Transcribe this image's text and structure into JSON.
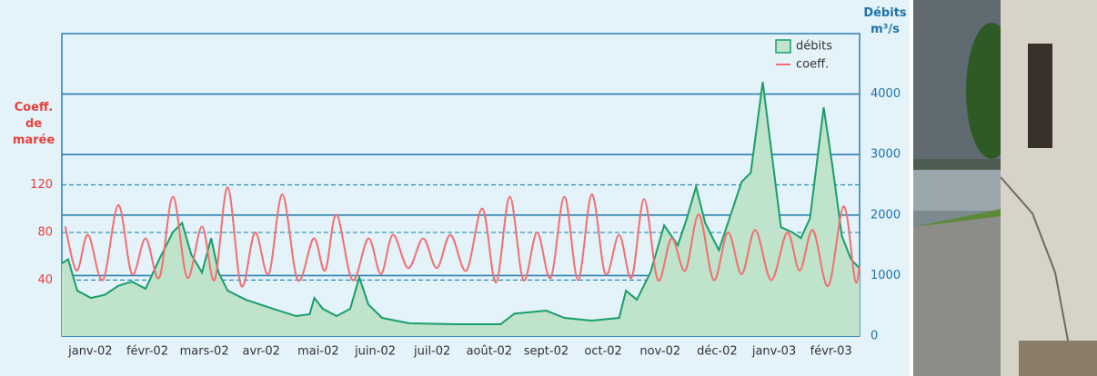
{
  "chart_data": {
    "type": "line",
    "y_title": "Coeff. de marée",
    "y2_title": "Débits m³/s",
    "xlim": [
      0,
      14
    ],
    "xticks": [
      {
        "value": 0.5,
        "label": "janv-02"
      },
      {
        "value": 1.5,
        "label": "févr-02"
      },
      {
        "value": 2.5,
        "label": "mars-02"
      },
      {
        "value": 3.5,
        "label": "avr-02"
      },
      {
        "value": 4.5,
        "label": "mai-02"
      },
      {
        "value": 5.5,
        "label": "juin-02"
      },
      {
        "value": 6.5,
        "label": "juil-02"
      },
      {
        "value": 7.5,
        "label": "août-02"
      },
      {
        "value": 8.5,
        "label": "sept-02"
      },
      {
        "value": 9.5,
        "label": "oct-02"
      },
      {
        "value": 10.5,
        "label": "nov-02"
      },
      {
        "value": 11.5,
        "label": "déc-02"
      },
      {
        "value": 12.5,
        "label": "janv-03"
      },
      {
        "value": 13.5,
        "label": "févr-03"
      }
    ],
    "ylim": [
      -7,
      247
    ],
    "yticks": [
      40,
      80,
      120
    ],
    "y2lim": [
      0,
      5000
    ],
    "y2ticks": [
      0,
      1000,
      2000,
      3000,
      4000
    ],
    "legend": "upper right",
    "series": [
      {
        "name": "débits",
        "color": "#1a9e6a",
        "fill": "#bfe3cb",
        "axis": "y2",
        "x": [
          0,
          0.11,
          0.27,
          0.51,
          0.75,
          0.99,
          1.23,
          1.47,
          1.71,
          1.95,
          2.11,
          2.27,
          2.46,
          2.62,
          2.75,
          2.91,
          3.23,
          3.71,
          4.11,
          4.35,
          4.43,
          4.58,
          4.82,
          5.06,
          5.22,
          5.38,
          5.62,
          6.1,
          6.9,
          7.7,
          7.94,
          8.5,
          8.82,
          9.3,
          9.78,
          9.9,
          10.09,
          10.33,
          10.57,
          10.81,
          10.97,
          11.13,
          11.29,
          11.53,
          11.69,
          11.93,
          12.09,
          12.3,
          12.46,
          12.62,
          12.81,
          12.97,
          13.13,
          13.37,
          13.53,
          13.69,
          13.85,
          14
        ],
        "values": [
          1200,
          1270,
          750,
          630,
          680,
          830,
          900,
          780,
          1270,
          1720,
          1870,
          1350,
          1050,
          1620,
          1050,
          750,
          600,
          450,
          330,
          360,
          630,
          450,
          330,
          450,
          970,
          520,
          300,
          210,
          195,
          195,
          370,
          420,
          300,
          255,
          300,
          750,
          600,
          1050,
          1830,
          1500,
          1950,
          2470,
          1870,
          1420,
          1870,
          2550,
          2700,
          4200,
          3000,
          1800,
          1720,
          1620,
          1950,
          3780,
          2770,
          1650,
          1270,
          1120
        ]
      },
      {
        "name": "coeff.",
        "color": "#f07070",
        "x": [
          0.06,
          0.26,
          0.46,
          0.72,
          0.99,
          1.23,
          1.47,
          1.71,
          1.95,
          2.2,
          2.46,
          2.68,
          2.91,
          3.15,
          3.39,
          3.63,
          3.87,
          4.14,
          4.42,
          4.62,
          4.82,
          5.1,
          5.38,
          5.6,
          5.81,
          6.08,
          6.34,
          6.58,
          6.82,
          7.1,
          7.38,
          7.62,
          7.86,
          8.1,
          8.34,
          8.58,
          8.82,
          9.06,
          9.3,
          9.54,
          9.78,
          10.0,
          10.22,
          10.46,
          10.7,
          10.94,
          11.18,
          11.44,
          11.69,
          11.93,
          12.17,
          12.45,
          12.73,
          12.95,
          13.18,
          13.45,
          13.72,
          13.92,
          14
        ],
        "values": [
          85,
          48,
          78,
          40,
          103,
          45,
          75,
          42,
          110,
          42,
          85,
          40,
          118,
          35,
          80,
          45,
          112,
          40,
          75,
          48,
          95,
          40,
          75,
          45,
          78,
          50,
          75,
          50,
          78,
          48,
          100,
          38,
          110,
          40,
          80,
          42,
          110,
          40,
          112,
          45,
          78,
          42,
          108,
          40,
          75,
          48,
          95,
          40,
          80,
          45,
          82,
          40,
          80,
          48,
          82,
          35,
          102,
          40,
          52
        ]
      }
    ]
  }
}
